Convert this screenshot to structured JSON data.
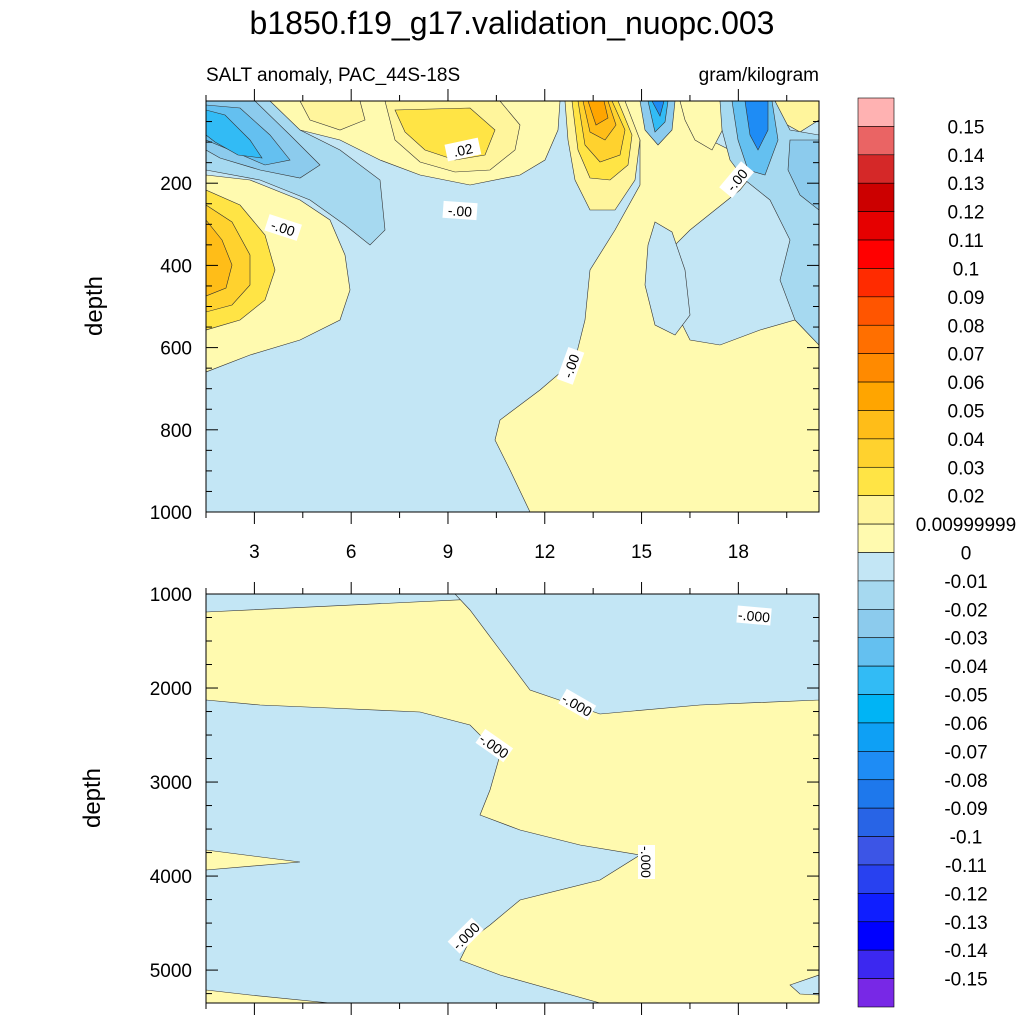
{
  "chart_data": {
    "type": "heatmap",
    "title": "b1850.f19_g17.validation_nuopc.003",
    "subtitle_left": "SALT anomaly, PAC_44S-18S",
    "subtitle_right": "gram/kilogram",
    "panels": [
      {
        "name": "upper",
        "ylabel": "depth",
        "ylim": [
          0,
          1000
        ],
        "yticks": [
          "200",
          "400",
          "600",
          "800",
          "1000"
        ],
        "xlim": [
          1.5,
          20.5
        ],
        "xticks": [
          "3",
          "6",
          "9",
          "12",
          "15",
          "18"
        ],
        "contour_labels": [
          ".02",
          "-.00",
          "-.00",
          "-.00",
          "-.00"
        ]
      },
      {
        "name": "lower",
        "ylabel": "depth",
        "ylim": [
          1000,
          5350
        ],
        "yticks": [
          "1000",
          "2000",
          "3000",
          "4000",
          "5000"
        ],
        "xlim": [
          1.5,
          20.5
        ],
        "contour_labels": [
          "-.000",
          "-.000",
          "-.000",
          "-.000",
          "-.000"
        ]
      }
    ],
    "colorbar": {
      "labels": [
        "0.15",
        "0.14",
        "0.13",
        "0.12",
        "0.11",
        "0.1",
        "0.09",
        "0.08",
        "0.07",
        "0.06",
        "0.05",
        "0.04",
        "0.03",
        "0.02",
        "0.00999999",
        "0",
        "-0.01",
        "-0.02",
        "-0.03",
        "-0.04",
        "-0.05",
        "-0.06",
        "-0.07",
        "-0.08",
        "-0.09",
        "-0.1",
        "-0.11",
        "-0.12",
        "-0.13",
        "-0.14",
        "-0.15"
      ],
      "colors": [
        "#ffb2b2",
        "#ea6464",
        "#d52828",
        "#cc0000",
        "#e60000",
        "#ff0000",
        "#ff2b00",
        "#ff5500",
        "#ff6f00",
        "#ff8a00",
        "#ffa500",
        "#ffbd18",
        "#ffd22e",
        "#ffe445",
        "#fff59c",
        "#fffaaf",
        "#c3e6f5",
        "#a6d9f0",
        "#8ccbed",
        "#64c0f0",
        "#32bbf5",
        "#00b4f5",
        "#0ea0f5",
        "#1e8cf5",
        "#1e78ec",
        "#2864e6",
        "#3c55e6",
        "#2841f0",
        "#0f1eff",
        "#0000ff",
        "#3c28f0",
        "#7828e6"
      ]
    }
  }
}
